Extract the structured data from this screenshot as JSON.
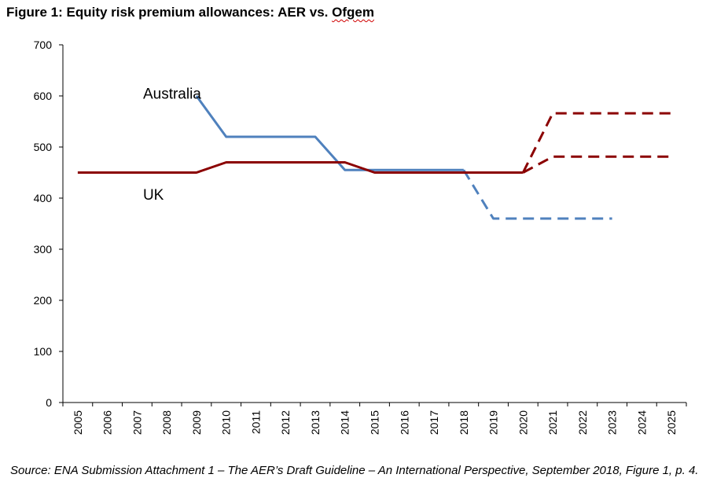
{
  "figure": {
    "title_prefix": "Figure 1: Equity risk premium allowances: AER vs. ",
    "title_flagged_word": "Ofgem",
    "source": "Source: ENA Submission Attachment 1 – The AER’s Draft Guideline – An International Perspective, September 2018, Figure 1, p. 4."
  },
  "chart_data": {
    "type": "line",
    "title": "Figure 1: Equity risk premium allowances: AER vs. Ofgem",
    "xlabel": "",
    "ylabel": "",
    "ylim": [
      0,
      700
    ],
    "y_ticks": [
      "0",
      "100",
      "200",
      "300",
      "400",
      "500",
      "600",
      "700"
    ],
    "categories": [
      "2005",
      "2006",
      "2007",
      "2008",
      "2009",
      "2010",
      "2011",
      "2012",
      "2013",
      "2014",
      "2015",
      "2016",
      "2017",
      "2018",
      "2019",
      "2020",
      "2021",
      "2022",
      "2023",
      "2024",
      "2025"
    ],
    "grid": false,
    "legend": "none",
    "series": [
      {
        "name": "Australia",
        "color": "#4f81bd",
        "segments": [
          {
            "style": "solid",
            "points": [
              [
                2009.0,
                600
              ],
              [
                2010.0,
                520
              ],
              [
                2013.0,
                520
              ],
              [
                2014.0,
                455
              ],
              [
                2018.0,
                455
              ]
            ]
          },
          {
            "style": "dashed",
            "points": [
              [
                2018.0,
                455
              ],
              [
                2019.0,
                360
              ],
              [
                2023.0,
                360
              ]
            ]
          }
        ]
      },
      {
        "name": "UK",
        "color": "#8b0000",
        "segments": [
          {
            "style": "solid",
            "points": [
              [
                2005.0,
                450
              ],
              [
                2009.0,
                450
              ],
              [
                2010.0,
                470
              ],
              [
                2014.0,
                470
              ],
              [
                2015.0,
                450
              ],
              [
                2020.0,
                450
              ]
            ]
          },
          {
            "style": "dashed",
            "points": [
              [
                2020.0,
                450
              ],
              [
                2021.0,
                566
              ],
              [
                2025.0,
                566
              ]
            ]
          },
          {
            "style": "dashed",
            "points": [
              [
                2020.0,
                450
              ],
              [
                2021.0,
                481
              ],
              [
                2025.0,
                481
              ]
            ]
          }
        ]
      }
    ]
  }
}
